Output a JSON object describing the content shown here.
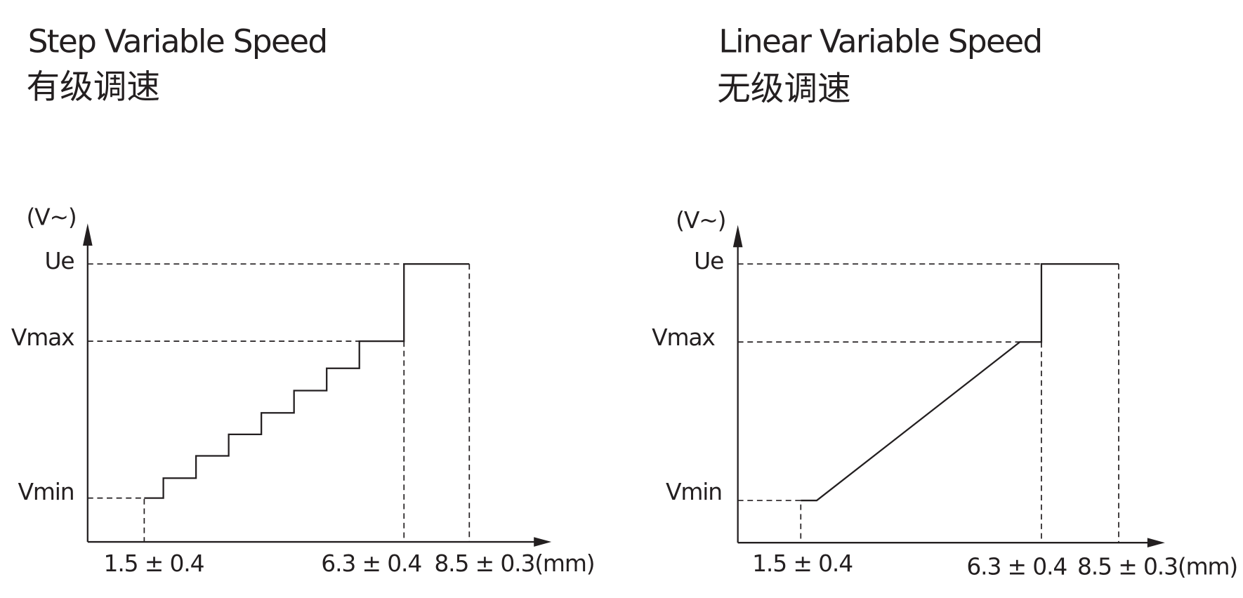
{
  "panels": [
    {
      "title_en": "Step Variable Speed",
      "title_zh": "有级调速",
      "y_unit": "(V~)",
      "y_labels": [
        "Ue",
        "Vmax",
        "Vmin"
      ],
      "x_labels": [
        "1.5 ± 0.4",
        "6.3 ± 0.4",
        "8.5 ± 0.3(mm)"
      ]
    },
    {
      "title_en": "Linear Variable Speed",
      "title_zh": "无级调速",
      "y_unit": "(V~)",
      "y_labels": [
        "Ue",
        "Vmax",
        "Vmin"
      ],
      "x_labels": [
        "1.5 ± 0.4",
        "6.3 ± 0.4",
        "8.5 ± 0.3(mm)"
      ]
    }
  ]
}
